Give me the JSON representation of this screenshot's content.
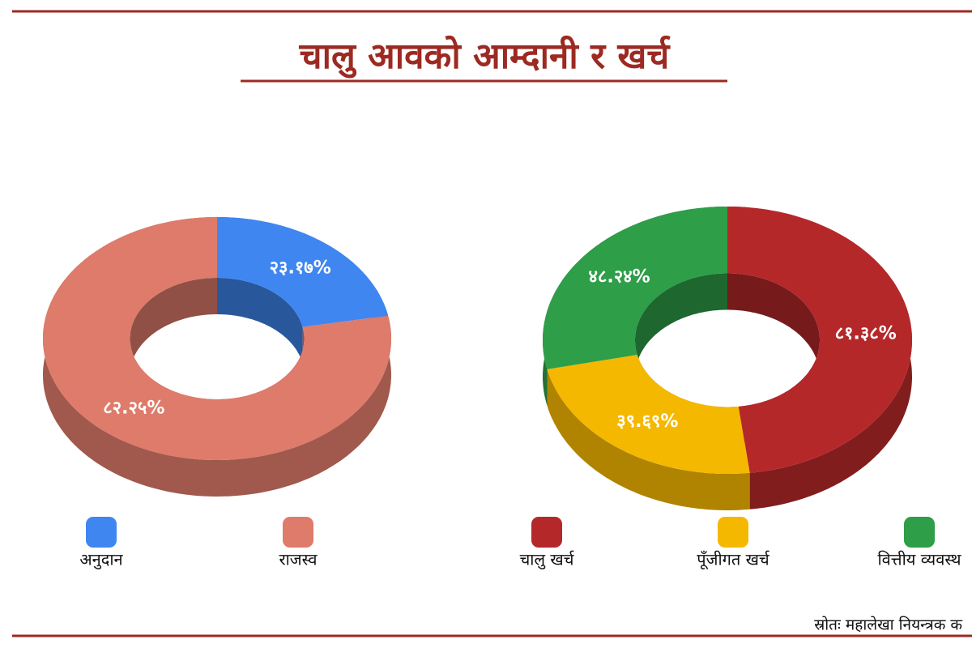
{
  "title": "चालु आवको आम्दानी र खर्च",
  "source": "स्रोतः महालेखा नियन्त्रक क",
  "chart_data": [
    {
      "type": "donut",
      "categories": [
        "अनुदान",
        "राजस्व"
      ],
      "values": [
        23.17,
        82.25
      ],
      "value_labels": [
        "२३.१७%",
        "८२.२५%"
      ],
      "colors": [
        "#3f86f0",
        "#de7b6a"
      ]
    },
    {
      "type": "donut",
      "categories": [
        "चालु खर्च",
        "पूँजीगत खर्च",
        "वित्तीय व्यवस्थ"
      ],
      "values": [
        81.38,
        39.69,
        48.24
      ],
      "value_labels": [
        "८१.३८%",
        "३९.६९%",
        "४८.२४%"
      ],
      "colors": [
        "#b5282a",
        "#f5b800",
        "#2e9e48"
      ]
    }
  ]
}
